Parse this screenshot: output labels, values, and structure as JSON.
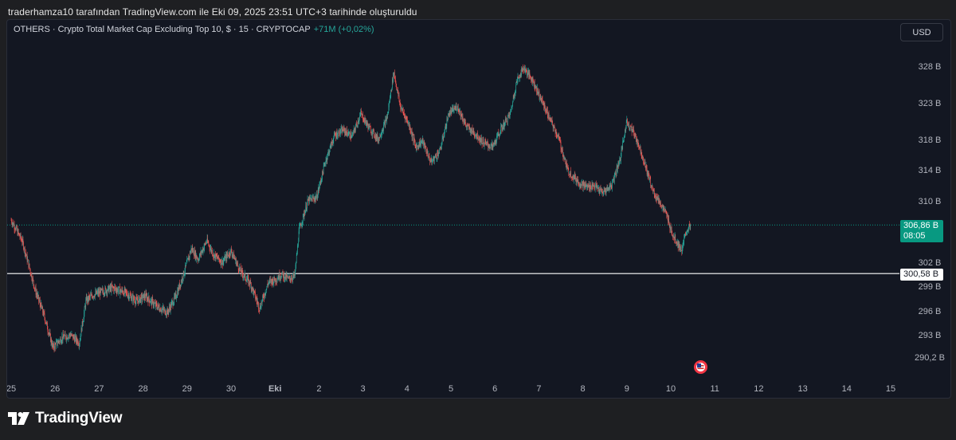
{
  "caption": "traderhamza10 tarafından TradingView.com ile Eki 09, 2025 23:51 UTC+3 tarihinde oluşturuldu",
  "legend": {
    "symbol_text": "OTHERS · Crypto Total Market Cap Excluding Top 10, $ · 15 · CRYPTOCAP",
    "change": "+71M (+0,02%)"
  },
  "currency_button": "USD",
  "price_tags": {
    "last_price": "306,86 B",
    "countdown": "08:05",
    "horizontal_line": "300,58 B"
  },
  "brand": {
    "name": "TradingView",
    "icon": "tradingview-logo-icon"
  },
  "event_icon": "us-flag-icon",
  "colors": {
    "background": "#131722",
    "up": "#26a69a",
    "down": "#ef5350",
    "last_price": "#089981",
    "horizontal_line": "#ffffff",
    "axis_text": "#b2b5be"
  },
  "chart_data": {
    "type": "candlestick",
    "timeframe": "15",
    "y_axis": {
      "ticks": [
        290.2,
        293,
        296,
        299,
        302,
        310,
        314,
        318,
        323,
        328
      ],
      "labels": [
        "290,2 B",
        "293 B",
        "296 B",
        "299 B",
        "302 B",
        "310 B",
        "314 B",
        "318 B",
        "323 B",
        "328 B"
      ]
    },
    "x_axis": {
      "labels": [
        "25",
        "26",
        "27",
        "28",
        "29",
        "30",
        "Eki",
        "2",
        "3",
        "4",
        "5",
        "6",
        "7",
        "8",
        "9",
        "10",
        "11",
        "12",
        "13",
        "14",
        "15"
      ]
    },
    "price_path": {
      "description_units": "day index (25 Sep = 0) vs price in B",
      "x": [
        0,
        0.25,
        0.55,
        0.75,
        0.95,
        1.15,
        1.35,
        1.55,
        1.7,
        1.85,
        2.05,
        2.3,
        2.6,
        2.85,
        3.05,
        3.3,
        3.55,
        3.75,
        3.95,
        4.1,
        4.25,
        4.45,
        4.6,
        4.8,
        5.0,
        5.2,
        5.45,
        5.65,
        5.85,
        6.0,
        6.15,
        6.3,
        6.45,
        6.55,
        6.75,
        6.95,
        7.15,
        7.35,
        7.55,
        7.75,
        7.95,
        8.15,
        8.35,
        8.55,
        8.7,
        8.85,
        9.05,
        9.2,
        9.35,
        9.55,
        9.75,
        9.95,
        10.15,
        10.35,
        10.55,
        10.75,
        10.95,
        11.15,
        11.35,
        11.5,
        11.65,
        11.85,
        12.05,
        12.25,
        12.45,
        12.65,
        12.8,
        12.95,
        13.1,
        13.25,
        13.45,
        13.65,
        13.85,
        14.0,
        14.15,
        14.3,
        14.45,
        14.6,
        14.75,
        14.9,
        15.05,
        15.15,
        15.25,
        15.35,
        15.45
      ],
      "close": [
        307.5,
        304.8,
        298.5,
        295.4,
        291.4,
        292.6,
        293.0,
        292.0,
        297.2,
        297.9,
        298.3,
        298.8,
        298.2,
        297.2,
        297.8,
        296.6,
        295.8,
        297.8,
        301.0,
        303.8,
        302.4,
        304.8,
        303.0,
        302.0,
        303.5,
        301.0,
        299.2,
        296.3,
        299.5,
        299.8,
        300.5,
        299.9,
        300.3,
        306.2,
        310.0,
        310.5,
        315.2,
        318.5,
        319.3,
        318.4,
        321.5,
        319.5,
        318.0,
        321.0,
        327.2,
        322.5,
        320.0,
        317.0,
        317.8,
        315.0,
        316.5,
        321.5,
        322.5,
        319.8,
        318.8,
        317.5,
        317.0,
        319.5,
        321.5,
        326.0,
        327.8,
        326.2,
        323.5,
        320.8,
        318.2,
        314.0,
        313.0,
        312.2,
        311.8,
        312.0,
        311.0,
        312.0,
        315.5,
        320.5,
        319.0,
        316.8,
        314.0,
        311.2,
        309.8,
        308.2,
        305.5,
        304.5,
        303.5,
        306.0,
        306.86
      ]
    },
    "last_price": 306.86,
    "horizontal_line": 300.58,
    "title": "OTHERS · Crypto Total Market Cap Excluding Top 10, $ · 15 · CRYPTOCAP"
  }
}
